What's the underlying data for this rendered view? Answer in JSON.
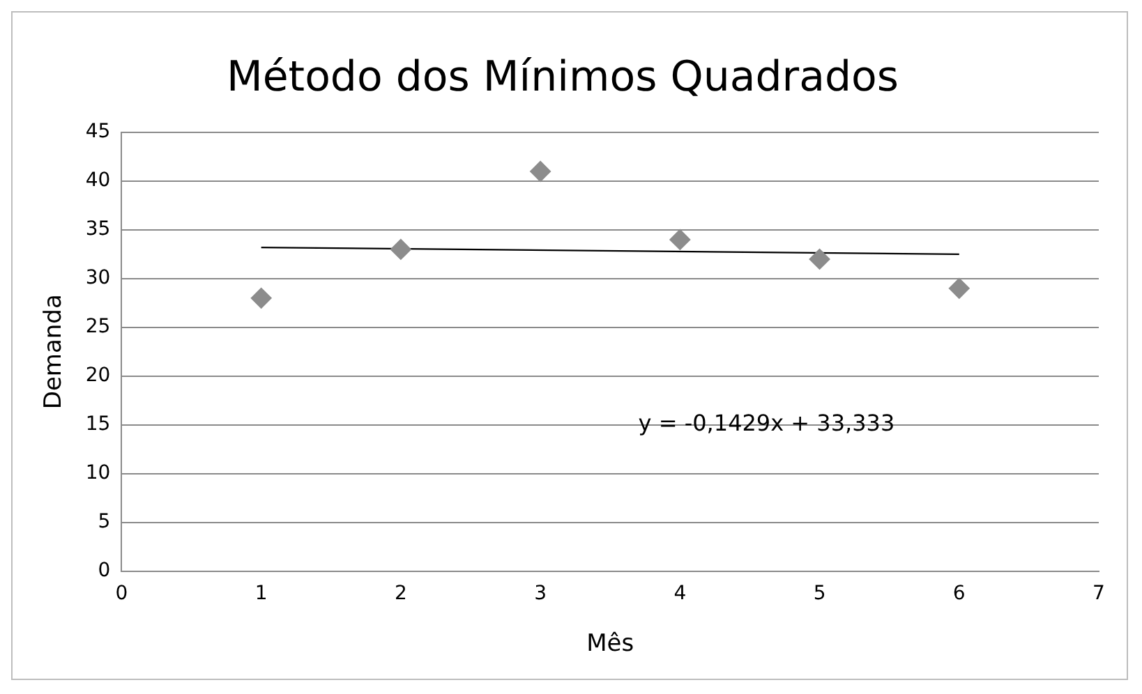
{
  "chart_data": {
    "type": "scatter",
    "title": "Método dos Mínimos Quadrados",
    "xlabel": "Mês",
    "ylabel": "Demanda",
    "x": [
      1,
      2,
      3,
      4,
      5,
      6
    ],
    "series": [
      {
        "color": "#8c8c8c",
        "values": [
          28,
          33,
          41,
          34,
          32,
          29
        ],
        "marker": "diamond"
      },
      {
        "type": "line",
        "color": "#000000",
        "x": [
          1,
          6
        ],
        "values": [
          33.2,
          32.5
        ],
        "marker": "none"
      }
    ],
    "xlim": [
      0,
      7
    ],
    "xticks": [
      0,
      1,
      2,
      3,
      4,
      5,
      6,
      7
    ],
    "ylim": [
      0,
      45
    ],
    "yticks": [
      0,
      5,
      10,
      15,
      20,
      25,
      30,
      35,
      40,
      45
    ],
    "grid": "y",
    "legend": false,
    "annotations": [
      "y = -0,1429x + 33,333"
    ]
  }
}
